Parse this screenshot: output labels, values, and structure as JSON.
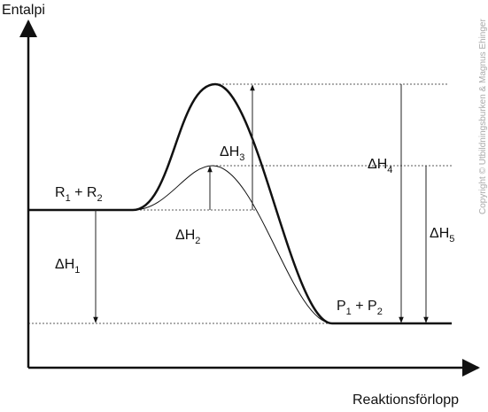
{
  "axes": {
    "y_label": "Entalpi",
    "x_label": "Reaktionsförlopp"
  },
  "species": {
    "reactants": [
      "R",
      "1",
      " + R",
      "2"
    ],
    "products": [
      "P",
      "1",
      " + P",
      "2"
    ]
  },
  "enthalpies": [
    {
      "symbol": "ΔH",
      "index": "1"
    },
    {
      "symbol": "ΔH",
      "index": "2"
    },
    {
      "symbol": "ΔH",
      "index": "3"
    },
    {
      "symbol": "ΔH",
      "index": "4"
    },
    {
      "symbol": "ΔH",
      "index": "5"
    }
  ],
  "copyright": "Copyright © Utbildningsburken & Magnus Ehinger"
}
